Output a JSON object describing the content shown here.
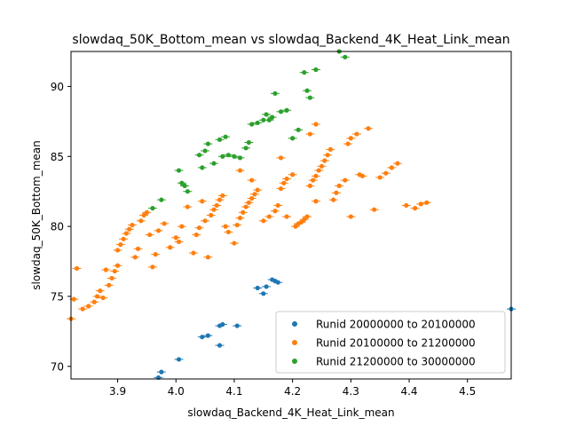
{
  "chart_data": {
    "type": "scatter",
    "title": "slowdaq_50K_Bottom_mean vs slowdaq_Backend_4K_Heat_Link_mean",
    "xlabel": "slowdaq_Backend_4K_Heat_Link_mean",
    "ylabel": "slowdaq_50K_Bottom_mean",
    "xlim": [
      3.82,
      4.575
    ],
    "ylim": [
      69.1,
      92.5
    ],
    "xticks": [
      "3.9",
      "4.0",
      "4.1",
      "4.2",
      "4.3",
      "4.4",
      "4.5"
    ],
    "yticks": [
      "70",
      "75",
      "80",
      "85",
      "90"
    ],
    "grid": false,
    "legend": "lower-right",
    "series": [
      {
        "name": "Runid 20000000 to 20100000",
        "color": "#1f77b4",
        "points": [
          [
            3.97,
            69.2
          ],
          [
            3.975,
            69.6
          ],
          [
            4.005,
            70.5
          ],
          [
            4.045,
            72.1
          ],
          [
            4.055,
            72.2
          ],
          [
            4.075,
            71.5
          ],
          [
            4.075,
            72.9
          ],
          [
            4.08,
            73.0
          ],
          [
            4.105,
            72.9
          ],
          [
            4.14,
            75.6
          ],
          [
            4.15,
            75.2
          ],
          [
            4.155,
            75.7
          ],
          [
            4.165,
            76.2
          ],
          [
            4.17,
            76.1
          ],
          [
            4.175,
            76.0
          ],
          [
            4.575,
            74.1
          ]
        ]
      },
      {
        "name": "Runid 20100000 to 21200000",
        "color": "#ff7f0e",
        "points": [
          [
            3.82,
            73.4
          ],
          [
            3.825,
            74.8
          ],
          [
            3.83,
            77.0
          ],
          [
            3.84,
            74.1
          ],
          [
            3.85,
            74.3
          ],
          [
            3.86,
            74.6
          ],
          [
            3.865,
            75.0
          ],
          [
            3.87,
            75.4
          ],
          [
            3.875,
            74.9
          ],
          [
            3.88,
            76.9
          ],
          [
            3.885,
            75.8
          ],
          [
            3.89,
            76.3
          ],
          [
            3.895,
            76.8
          ],
          [
            3.9,
            77.2
          ],
          [
            3.9,
            78.3
          ],
          [
            3.905,
            78.7
          ],
          [
            3.91,
            79.1
          ],
          [
            3.915,
            79.5
          ],
          [
            3.92,
            79.8
          ],
          [
            3.925,
            80.1
          ],
          [
            3.93,
            77.8
          ],
          [
            3.935,
            78.4
          ],
          [
            3.94,
            80.4
          ],
          [
            3.945,
            80.8
          ],
          [
            3.95,
            81.0
          ],
          [
            3.955,
            79.4
          ],
          [
            3.96,
            77.1
          ],
          [
            3.965,
            78.0
          ],
          [
            3.97,
            79.7
          ],
          [
            3.98,
            80.2
          ],
          [
            3.99,
            78.5
          ],
          [
            4.0,
            79.2
          ],
          [
            4.005,
            78.9
          ],
          [
            4.01,
            80.0
          ],
          [
            4.02,
            81.4
          ],
          [
            4.03,
            78.1
          ],
          [
            4.035,
            79.4
          ],
          [
            4.04,
            79.9
          ],
          [
            4.045,
            81.8
          ],
          [
            4.05,
            80.4
          ],
          [
            4.055,
            77.8
          ],
          [
            4.06,
            80.8
          ],
          [
            4.065,
            81.2
          ],
          [
            4.07,
            81.5
          ],
          [
            4.075,
            81.9
          ],
          [
            4.08,
            82.2
          ],
          [
            4.085,
            80.0
          ],
          [
            4.09,
            79.6
          ],
          [
            4.1,
            78.8
          ],
          [
            4.105,
            80.1
          ],
          [
            4.11,
            80.6
          ],
          [
            4.115,
            81.0
          ],
          [
            4.12,
            81.4
          ],
          [
            4.125,
            81.7
          ],
          [
            4.13,
            82.0
          ],
          [
            4.135,
            82.3
          ],
          [
            4.14,
            82.6
          ],
          [
            4.15,
            80.4
          ],
          [
            4.16,
            80.7
          ],
          [
            4.17,
            81.1
          ],
          [
            4.175,
            81.5
          ],
          [
            4.18,
            82.7
          ],
          [
            4.185,
            83.1
          ],
          [
            4.19,
            83.4
          ],
          [
            4.2,
            83.7
          ],
          [
            4.205,
            80.0
          ],
          [
            4.21,
            80.2
          ],
          [
            4.215,
            80.3
          ],
          [
            4.22,
            80.5
          ],
          [
            4.225,
            80.7
          ],
          [
            4.23,
            82.9
          ],
          [
            4.235,
            83.3
          ],
          [
            4.24,
            83.6
          ],
          [
            4.245,
            84.0
          ],
          [
            4.25,
            84.3
          ],
          [
            4.255,
            84.7
          ],
          [
            4.26,
            85.1
          ],
          [
            4.265,
            85.5
          ],
          [
            4.27,
            81.9
          ],
          [
            4.275,
            82.4
          ],
          [
            4.28,
            82.9
          ],
          [
            4.29,
            83.3
          ],
          [
            4.295,
            85.9
          ],
          [
            4.3,
            86.3
          ],
          [
            4.31,
            86.6
          ],
          [
            4.315,
            83.7
          ],
          [
            4.32,
            83.6
          ],
          [
            4.33,
            87.0
          ],
          [
            4.34,
            81.2
          ],
          [
            4.35,
            83.5
          ],
          [
            4.36,
            83.8
          ],
          [
            4.37,
            84.2
          ],
          [
            4.38,
            84.5
          ],
          [
            4.395,
            81.5
          ],
          [
            4.41,
            81.3
          ],
          [
            4.42,
            81.6
          ],
          [
            4.43,
            81.7
          ],
          [
            4.19,
            80.7
          ],
          [
            4.24,
            81.8
          ],
          [
            4.3,
            80.7
          ],
          [
            4.23,
            86.6
          ],
          [
            4.24,
            87.3
          ],
          [
            4.18,
            84.9
          ],
          [
            4.13,
            83.3
          ],
          [
            4.11,
            84.0
          ]
        ]
      },
      {
        "name": "Runid 21200000 to 30000000",
        "color": "#2ca02c",
        "points": [
          [
            3.96,
            81.3
          ],
          [
            3.975,
            81.9
          ],
          [
            4.005,
            84.0
          ],
          [
            4.01,
            83.1
          ],
          [
            4.015,
            82.9
          ],
          [
            4.02,
            82.5
          ],
          [
            4.04,
            85.1
          ],
          [
            4.045,
            84.2
          ],
          [
            4.05,
            85.4
          ],
          [
            4.055,
            85.9
          ],
          [
            4.065,
            84.5
          ],
          [
            4.075,
            86.2
          ],
          [
            4.08,
            85.0
          ],
          [
            4.085,
            86.4
          ],
          [
            4.09,
            85.1
          ],
          [
            4.1,
            85.0
          ],
          [
            4.11,
            84.9
          ],
          [
            4.12,
            85.6
          ],
          [
            4.125,
            86.0
          ],
          [
            4.13,
            87.3
          ],
          [
            4.14,
            87.4
          ],
          [
            4.15,
            87.6
          ],
          [
            4.155,
            88.0
          ],
          [
            4.16,
            87.6
          ],
          [
            4.165,
            87.8
          ],
          [
            4.17,
            89.5
          ],
          [
            4.18,
            88.2
          ],
          [
            4.19,
            88.3
          ],
          [
            4.2,
            86.3
          ],
          [
            4.21,
            86.9
          ],
          [
            4.22,
            91.0
          ],
          [
            4.225,
            89.7
          ],
          [
            4.23,
            89.2
          ],
          [
            4.24,
            91.2
          ],
          [
            4.28,
            92.5
          ],
          [
            4.29,
            92.1
          ]
        ]
      }
    ]
  }
}
